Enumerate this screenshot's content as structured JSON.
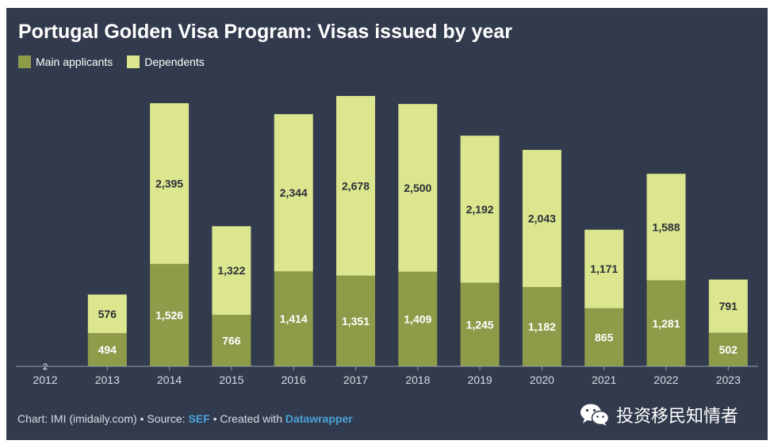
{
  "title": "Portugal Golden Visa Program: Visas issued by year",
  "legend": {
    "main": "Main applicants",
    "dependents": "Dependents"
  },
  "colors": {
    "background": "#323a4d",
    "main": "#8e9b49",
    "dependents": "#dbe68e",
    "text": "#ffffff",
    "link": "#4aa3d9"
  },
  "footer": {
    "prefix": "Chart: IMI (imidaily.com) • Source: ",
    "source_link": "SEF",
    "middle": " • Created with ",
    "tool_link": "Datawrapper"
  },
  "watermark": {
    "icon": "wechat-icon",
    "text": "投资移民知情者"
  },
  "chart_data": {
    "type": "bar",
    "stacked": true,
    "categories": [
      "2012",
      "2013",
      "2014",
      "2015",
      "2016",
      "2017",
      "2018",
      "2019",
      "2020",
      "2021",
      "2022",
      "2023"
    ],
    "series": [
      {
        "name": "Main applicants",
        "values": [
          2,
          494,
          1526,
          766,
          1414,
          1351,
          1409,
          1245,
          1182,
          865,
          1281,
          502
        ],
        "labels": [
          "2",
          "494",
          "1,526",
          "766",
          "1,414",
          "1,351",
          "1,409",
          "1,245",
          "1,182",
          "865",
          "1,281",
          "502"
        ]
      },
      {
        "name": "Dependents",
        "values": [
          0,
          576,
          2395,
          1322,
          2344,
          2678,
          2500,
          2192,
          2043,
          1171,
          1588,
          791
        ],
        "labels": [
          "0",
          "576",
          "2,395",
          "1,322",
          "2,344",
          "2,678",
          "2,500",
          "2,192",
          "2,043",
          "1,171",
          "1,588",
          "791"
        ]
      }
    ],
    "ylim": [
      0,
      4100
    ],
    "grid": false,
    "legend_position": "top-left"
  }
}
